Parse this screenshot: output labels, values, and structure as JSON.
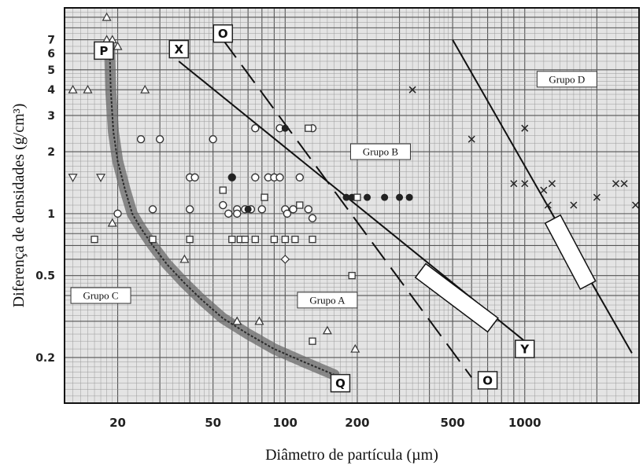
{
  "chart_data": {
    "type": "scatter",
    "xlabel": "Diâmetro de partícula (µm)",
    "ylabel": "Diferença de densidades (g/cm³)",
    "x_scale": "log",
    "y_scale": "log",
    "xlim": [
      12,
      3000
    ],
    "ylim": [
      0.12,
      10
    ],
    "x_ticks": [
      20,
      50,
      100,
      200,
      500,
      1000
    ],
    "x_tick_labels": [
      "20",
      "50",
      "100",
      "200",
      "500",
      "1000"
    ],
    "y_ticks": [
      0.2,
      0.5,
      1,
      2,
      3,
      4,
      5,
      6,
      7
    ],
    "y_tick_labels": [
      "0.2",
      "0.5",
      "1",
      "2",
      "3",
      "4",
      "5",
      "6",
      "7"
    ],
    "grid": true,
    "regions": [
      {
        "label": "Grupo A",
        "x": 150,
        "y": 0.38
      },
      {
        "label": "Grupo B",
        "x": 250,
        "y": 2.0
      },
      {
        "label": "Grupo C",
        "x": 17,
        "y": 0.4
      },
      {
        "label": "Grupo D",
        "x": 1500,
        "y": 4.5
      }
    ],
    "boundary_lines": [
      {
        "from_label": "P",
        "to_label": "Q",
        "style": "band",
        "points": [
          [
            18.5,
            6.5
          ],
          [
            18.7,
            4
          ],
          [
            19.2,
            2.5
          ],
          [
            20,
            1.8
          ],
          [
            21.5,
            1.3
          ],
          [
            23,
            1.0
          ],
          [
            25,
            0.85
          ],
          [
            28,
            0.7
          ],
          [
            32,
            0.57
          ],
          [
            38,
            0.46
          ],
          [
            45,
            0.38
          ],
          [
            55,
            0.31
          ],
          [
            70,
            0.26
          ],
          [
            90,
            0.22
          ],
          [
            120,
            0.19
          ],
          [
            160,
            0.165
          ]
        ]
      },
      {
        "from_label": "X",
        "to_label": "Y",
        "style": "solid",
        "points": [
          [
            36,
            5.5
          ],
          [
            1000,
            0.24
          ]
        ]
      },
      {
        "from_label": "O",
        "to_label": "O",
        "style": "dashed",
        "points": [
          [
            55,
            7
          ],
          [
            600,
            0.16
          ]
        ]
      },
      {
        "label": "",
        "style": "solid",
        "points": [
          [
            500,
            7
          ],
          [
            2800,
            0.21
          ]
        ]
      }
    ],
    "point_labels": [
      {
        "label": "P",
        "x": 17.5,
        "y": 6.2
      },
      {
        "label": "Q",
        "x": 170,
        "y": 0.15
      },
      {
        "label": "X",
        "x": 36,
        "y": 6.3
      },
      {
        "label": "Y",
        "x": 1000,
        "y": 0.22
      },
      {
        "label": "O",
        "x": 55,
        "y": 7.5
      },
      {
        "label": "O",
        "x": 700,
        "y": 0.155
      }
    ],
    "series": [
      {
        "marker": "triangle-up",
        "points": [
          [
            13,
            4
          ],
          [
            15,
            4
          ],
          [
            18,
            9
          ],
          [
            18,
            7
          ],
          [
            19,
            7
          ],
          [
            20,
            6.5
          ],
          [
            19,
            0.9
          ],
          [
            26,
            4
          ],
          [
            38,
            0.6
          ],
          [
            63,
            0.3
          ],
          [
            78,
            0.3
          ],
          [
            150,
            0.27
          ],
          [
            196,
            0.22
          ]
        ]
      },
      {
        "marker": "triangle-down",
        "points": [
          [
            13,
            1.5
          ],
          [
            17,
            1.5
          ]
        ]
      },
      {
        "marker": "circle",
        "points": [
          [
            20,
            1
          ],
          [
            25,
            2.3
          ],
          [
            28,
            1.05
          ],
          [
            30,
            2.3
          ],
          [
            40,
            1.5
          ],
          [
            42,
            1.5
          ],
          [
            40,
            1.05
          ],
          [
            50,
            2.3
          ],
          [
            55,
            1.1
          ],
          [
            58,
            1
          ],
          [
            60,
            1.5
          ],
          [
            63,
            1.05
          ],
          [
            63,
            1.0
          ],
          [
            68,
            1.05
          ],
          [
            72,
            1.05
          ],
          [
            75,
            1.5
          ],
          [
            80,
            1.05
          ],
          [
            85,
            1.5
          ],
          [
            90,
            1.5
          ],
          [
            95,
            1.5
          ],
          [
            100,
            1.05
          ],
          [
            102,
            1.0
          ],
          [
            108,
            1.05
          ],
          [
            115,
            1.5
          ],
          [
            125,
            1.05
          ],
          [
            130,
            0.95
          ],
          [
            75,
            2.6
          ],
          [
            95,
            2.6
          ],
          [
            130,
            2.6
          ]
        ]
      },
      {
        "marker": "filled-circle",
        "points": [
          [
            60,
            1.5
          ],
          [
            70,
            1.05
          ],
          [
            100,
            2.6
          ],
          [
            180,
            1.2
          ],
          [
            190,
            1.2
          ],
          [
            200,
            1.2
          ],
          [
            220,
            1.2
          ],
          [
            260,
            1.2
          ],
          [
            300,
            1.2
          ],
          [
            330,
            1.2
          ]
        ]
      },
      {
        "marker": "square",
        "points": [
          [
            16,
            0.75
          ],
          [
            28,
            0.75
          ],
          [
            40,
            0.75
          ],
          [
            55,
            1.3
          ],
          [
            60,
            0.75
          ],
          [
            65,
            0.75
          ],
          [
            68,
            0.75
          ],
          [
            75,
            0.75
          ],
          [
            82,
            1.2
          ],
          [
            90,
            0.75
          ],
          [
            100,
            0.75
          ],
          [
            110,
            0.75
          ],
          [
            115,
            1.1
          ],
          [
            125,
            2.6
          ],
          [
            130,
            0.75
          ],
          [
            190,
            0.5
          ],
          [
            130,
            0.24
          ],
          [
            200,
            1.2
          ]
        ]
      },
      {
        "marker": "diamond",
        "points": [
          [
            100,
            0.6
          ]
        ]
      },
      {
        "marker": "x",
        "points": [
          [
            340,
            4
          ],
          [
            600,
            2.3
          ],
          [
            900,
            1.4
          ],
          [
            1000,
            1.4
          ],
          [
            1000,
            2.6
          ],
          [
            1300,
            1.4
          ],
          [
            1200,
            1.3
          ],
          [
            1250,
            1.1
          ],
          [
            1600,
            1.1
          ],
          [
            2000,
            1.2
          ],
          [
            2400,
            1.4
          ],
          [
            2600,
            1.4
          ],
          [
            2900,
            1.1
          ]
        ]
      }
    ]
  }
}
